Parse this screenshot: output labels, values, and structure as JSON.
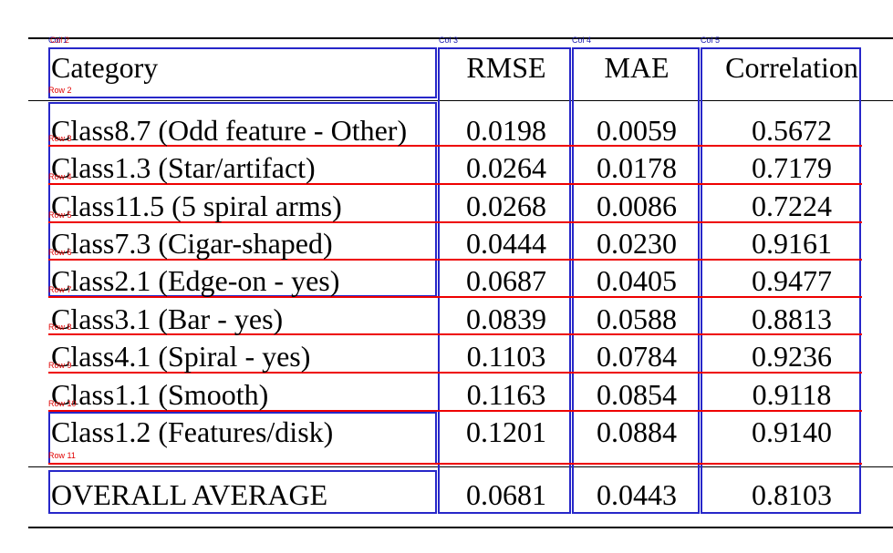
{
  "table": {
    "headers": [
      "Category",
      "RMSE",
      "MAE",
      "Correlation"
    ],
    "rows": [
      {
        "category": "Class8.7 (Odd feature - Other)",
        "rmse": "0.0198",
        "mae": "0.0059",
        "corr": "0.5672"
      },
      {
        "category": "Class1.3 (Star/artifact)",
        "rmse": "0.0264",
        "mae": "0.0178",
        "corr": "0.7179"
      },
      {
        "category": "Class11.5 (5 spiral arms)",
        "rmse": "0.0268",
        "mae": "0.0086",
        "corr": "0.7224"
      },
      {
        "category": "Class7.3 (Cigar-shaped)",
        "rmse": "0.0444",
        "mae": "0.0230",
        "corr": "0.9161"
      },
      {
        "category": "Class2.1 (Edge-on - yes)",
        "rmse": "0.0687",
        "mae": "0.0405",
        "corr": "0.9477"
      },
      {
        "category": "Class3.1 (Bar - yes)",
        "rmse": "0.0839",
        "mae": "0.0588",
        "corr": "0.8813"
      },
      {
        "category": "Class4.1 (Spiral - yes)",
        "rmse": "0.1103",
        "mae": "0.0784",
        "corr": "0.9236"
      },
      {
        "category": "Class1.1 (Smooth)",
        "rmse": "0.1163",
        "mae": "0.0854",
        "corr": "0.9118"
      },
      {
        "category": "Class1.2 (Features/disk)",
        "rmse": "0.1201",
        "mae": "0.0884",
        "corr": "0.9140"
      }
    ],
    "total": {
      "category": "OVERALL AVERAGE",
      "rmse": "0.0681",
      "mae": "0.0443",
      "corr": "0.8103"
    }
  },
  "annotations": {
    "columns": [
      "Col 1",
      "Col 2",
      "Col 3",
      "Col 4",
      "Col 5"
    ],
    "rows": [
      "Row 2",
      "Row 3",
      "Row 4",
      "Row 5",
      "Row 6",
      "Row 7",
      "Row 8",
      "Row 9",
      "Row 10",
      "Row 11"
    ]
  },
  "colors": {
    "row_box": "#ee0000",
    "col_box": "#2727c9",
    "rule": "#000000"
  }
}
